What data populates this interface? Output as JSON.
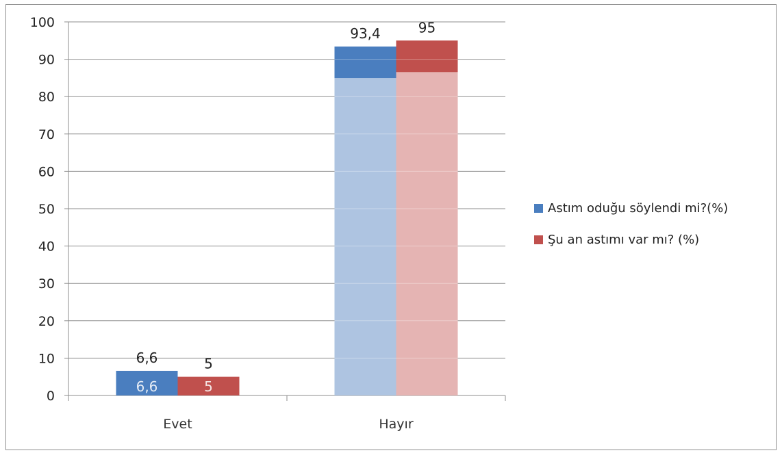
{
  "chart_data": {
    "type": "bar",
    "title": "",
    "xlabel": "",
    "ylabel": "",
    "categories": [
      "Evet",
      "Hayır"
    ],
    "series": [
      {
        "name": "Astım oduğu söylendi mi?(%)",
        "values": [
          6.6,
          93.4
        ],
        "labels": [
          "6,6",
          "93,4"
        ],
        "color": "#4a7ebf",
        "light_color": "#aec4e1"
      },
      {
        "name": "Şu an astımı var mı? (%)",
        "values": [
          5,
          95
        ],
        "labels": [
          "5",
          "95"
        ],
        "color": "#c0504d",
        "light_color": "#e5b4b3"
      }
    ],
    "ylim": [
      0,
      100
    ],
    "yticks": [
      0,
      10,
      20,
      30,
      40,
      50,
      60,
      70,
      80,
      90,
      100
    ],
    "grid": true,
    "legend": "right"
  }
}
